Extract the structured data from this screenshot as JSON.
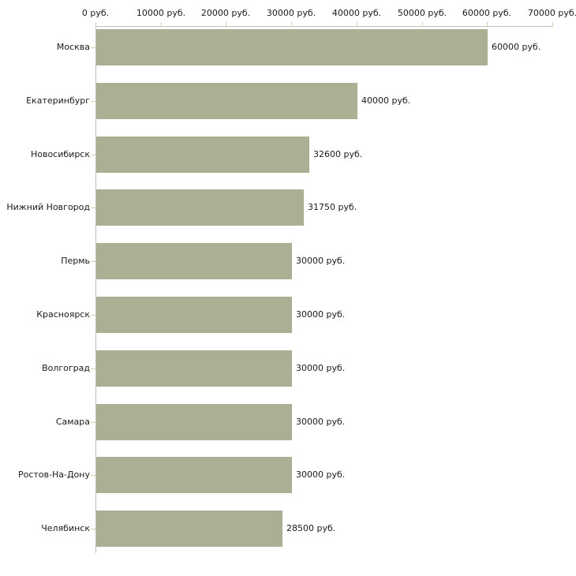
{
  "chart_data": {
    "type": "bar",
    "orientation": "horizontal",
    "title": "",
    "xlabel": "",
    "ylabel": "",
    "categories": [
      "Москва",
      "Екатеринбург",
      "Новосибирск",
      "Нижний Новгород",
      "Пермь",
      "Красноярск",
      "Волгоград",
      "Самара",
      "Ростов-На-Дону",
      "Челябинск"
    ],
    "values": [
      60000,
      40000,
      32600,
      31750,
      30000,
      30000,
      30000,
      30000,
      30000,
      28500
    ],
    "value_labels": [
      "60000 руб.",
      "40000 руб.",
      "32600 руб.",
      "31750 руб.",
      "30000 руб.",
      "30000 руб.",
      "30000 руб.",
      "30000 руб.",
      "30000 руб.",
      "28500 руб."
    ],
    "x_axis": {
      "position": "top",
      "min": 0,
      "max": 70000,
      "tick_values": [
        0,
        10000,
        20000,
        30000,
        40000,
        50000,
        60000,
        70000
      ],
      "tick_labels": [
        "0 руб.",
        "10000 руб.",
        "20000 руб.",
        "30000 руб.",
        "40000 руб.",
        "50000 руб.",
        "60000 руб.",
        "70000 руб."
      ]
    },
    "grid": false,
    "legend": false,
    "colors": {
      "bar": "#abb094",
      "axis_line": "#c0c0c0",
      "tick_mark": "#d6d2a8",
      "text": "#1a1a1a",
      "background": "#ffffff"
    }
  }
}
